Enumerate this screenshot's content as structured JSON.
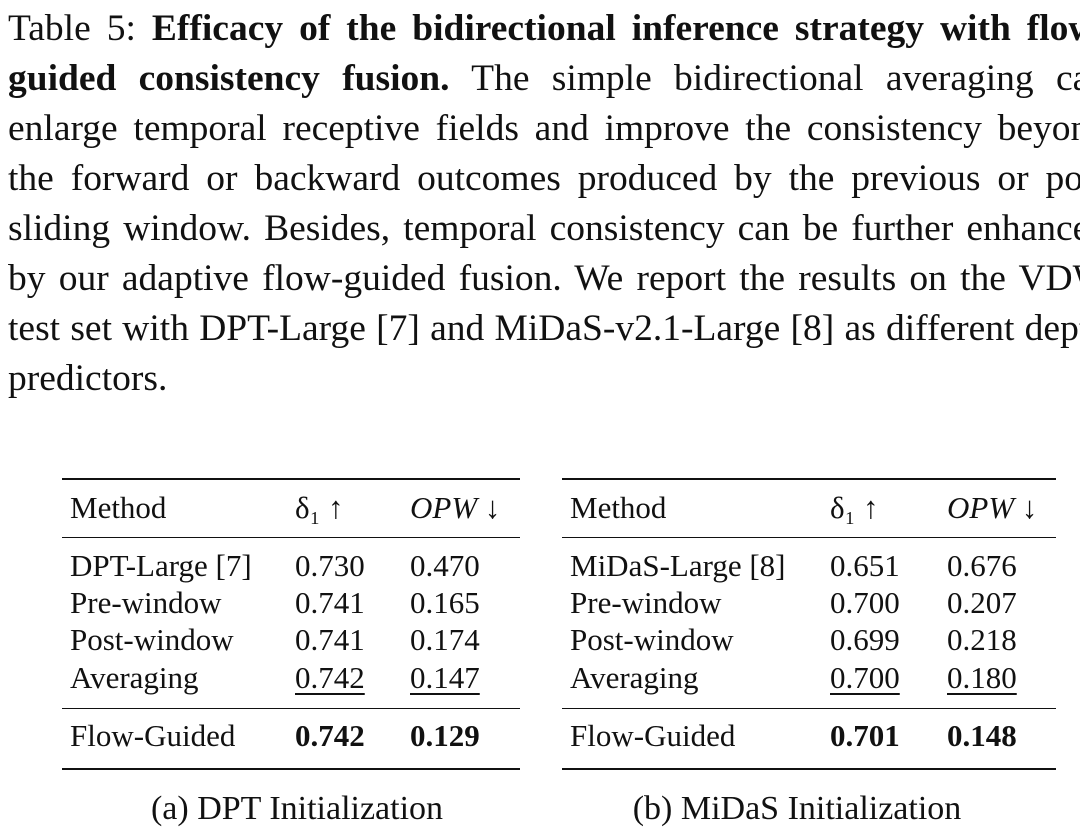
{
  "caption": {
    "label": "Table 5:",
    "title": "Efficacy of the bidirectional inference strategy with flow-guided consistency fusion.",
    "text": "The simple bidirectional averaging can enlarge temporal receptive fields and improve the consistency beyond the forward or backward outcomes produced by the previous or post sliding window. Besides, temporal consistency can be further enhanced by our adaptive flow-guided fusion. We report the results on the VDW test set with DPT-Large [7] and MiDaS-v2.1-Large [8] as different depth predictors."
  },
  "tables": [
    {
      "header": [
        "Method",
        "δ₁ ↑",
        "OPW ↓"
      ],
      "rows": [
        [
          "DPT-Large [7]",
          "0.730",
          "0.470"
        ],
        [
          "Pre-window",
          "0.741",
          "0.165"
        ],
        [
          "Post-window",
          "0.741",
          "0.174"
        ],
        [
          "Averaging",
          "0.742",
          "0.147"
        ]
      ],
      "final": [
        "Flow-Guided",
        "0.742",
        "0.129"
      ],
      "caption": "(a) DPT Initialization"
    },
    {
      "header": [
        "Method",
        "δ₁ ↑",
        "OPW ↓"
      ],
      "rows": [
        [
          "MiDaS-Large [8]",
          "0.651",
          "0.676"
        ],
        [
          "Pre-window",
          "0.700",
          "0.207"
        ],
        [
          "Post-window",
          "0.699",
          "0.218"
        ],
        [
          "Averaging",
          "0.700",
          "0.180"
        ]
      ],
      "final": [
        "Flow-Guided",
        "0.701",
        "0.148"
      ],
      "caption": "(b) MiDaS Initialization"
    }
  ]
}
